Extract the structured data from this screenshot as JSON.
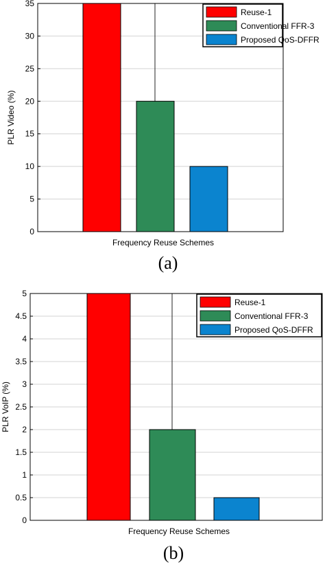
{
  "chart_data": [
    {
      "type": "bar",
      "caption": "(a)",
      "xlabel": "Frequency Reuse Schemes",
      "ylabel": "PLR Video (%)",
      "ylim": [
        0,
        35
      ],
      "yticks": [
        0,
        5,
        10,
        15,
        20,
        25,
        30,
        35
      ],
      "grid": true,
      "legend_position": "top-right",
      "series": [
        {
          "name": "Reuse-1",
          "value": 35,
          "color": "#ff0000"
        },
        {
          "name": "Conventional FFR-3",
          "value": 20,
          "color": "#2e8b57"
        },
        {
          "name": "Proposed QoS-DFFR",
          "value": 10,
          "color": "#0b84cf"
        }
      ]
    },
    {
      "type": "bar",
      "caption": "(b)",
      "xlabel": "Frequency Reuse Schemes",
      "ylabel": "PLR VoIP (%)",
      "ylim": [
        0,
        5
      ],
      "yticks": [
        0,
        0.5,
        1,
        1.5,
        2,
        2.5,
        3,
        3.5,
        4,
        4.5,
        5
      ],
      "grid": true,
      "legend_position": "top-right",
      "series": [
        {
          "name": "Reuse-1",
          "value": 5,
          "color": "#ff0000"
        },
        {
          "name": "Conventional FFR-3",
          "value": 2,
          "color": "#2e8b57"
        },
        {
          "name": "Proposed QoS-DFFR",
          "value": 0.5,
          "color": "#0b84cf"
        }
      ]
    }
  ]
}
